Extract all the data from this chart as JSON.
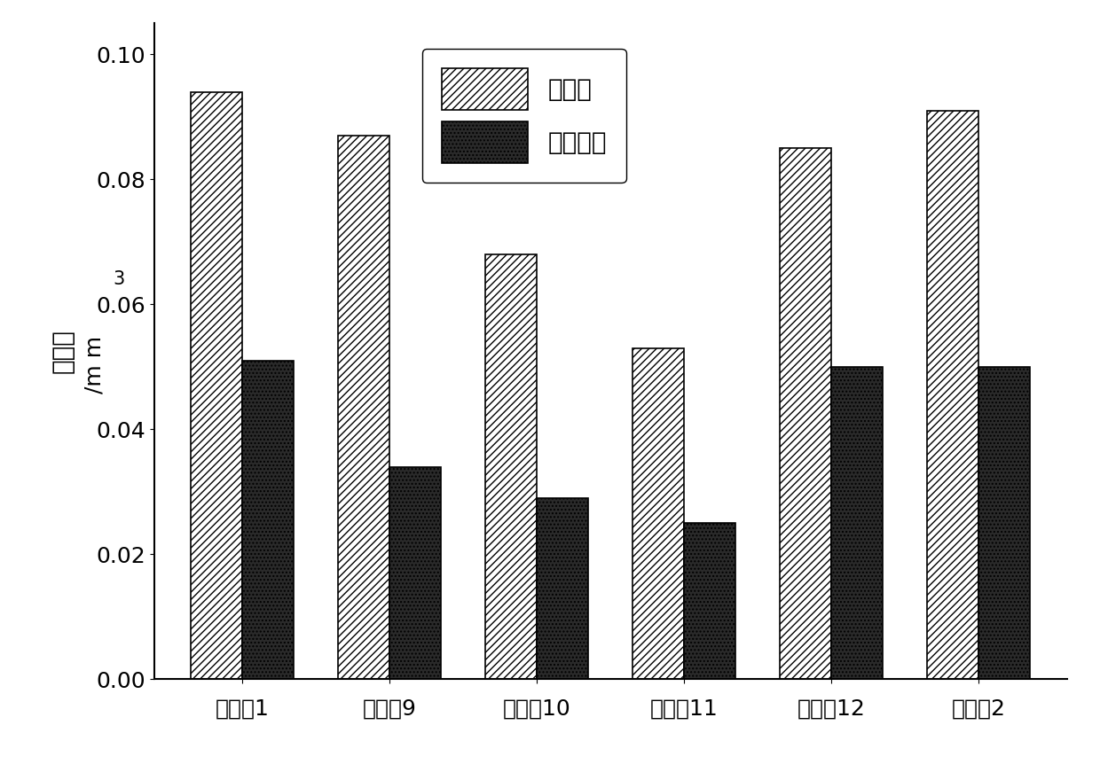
{
  "categories": [
    "对比例1",
    "实施例9",
    "实施例10",
    "实施例11",
    "实施例12",
    "对比例2"
  ],
  "dry_friction": [
    0.094,
    0.087,
    0.068,
    0.053,
    0.085,
    0.091
  ],
  "seawater": [
    0.051,
    0.034,
    0.029,
    0.025,
    0.05,
    0.05
  ],
  "ylabel_main": "磨损量",
  "ylabel_unit": "/m m",
  "ylabel_exp": "3",
  "legend_dry": "干摩擦",
  "legend_sea": "海水环境",
  "ylim": [
    0.0,
    0.105
  ],
  "yticks": [
    0.0,
    0.02,
    0.04,
    0.06,
    0.08,
    0.1
  ],
  "bar_width": 0.35,
  "dry_facecolor": "#ffffff",
  "dry_edgecolor": "#000000",
  "sea_facecolor": "#2a2a2a",
  "sea_edgecolor": "#000000",
  "background_color": "#ffffff",
  "label_fontsize": 20,
  "tick_fontsize": 18,
  "legend_fontsize": 20
}
